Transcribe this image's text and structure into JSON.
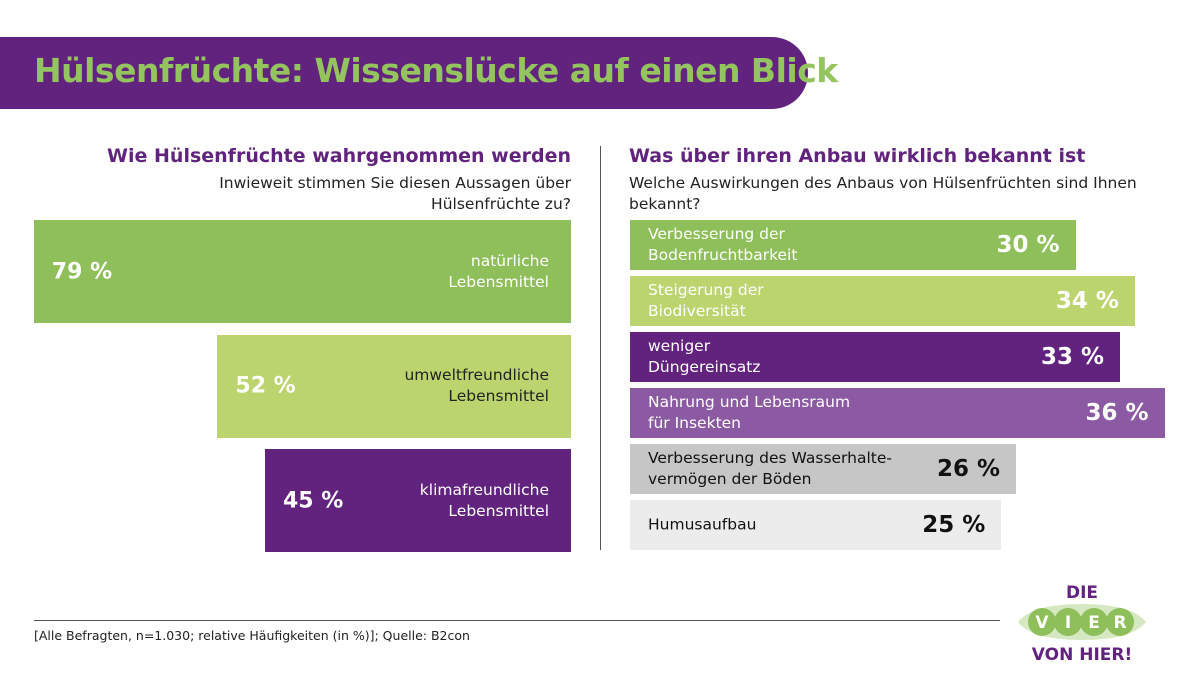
{
  "title": "Hülsenfrüchte: Wissenslücke auf einen Blick",
  "colors": {
    "purple": "#62237e",
    "green": "#8fbf5a",
    "light_green": "#bcd46e",
    "light_purple": "#8b5aa3",
    "gray": "#c6c6c6",
    "light_gray": "#ececec",
    "title_green": "#94c45e"
  },
  "chart_data": [
    {
      "type": "bar",
      "orientation": "horizontal",
      "title": "Wie Hülsenfrüchte wahrgenommen werden",
      "subtitle": "Inwieweit stimmen Sie diesen Aussagen über Hülsenfrüchte zu?",
      "categories": [
        "natürliche Lebensmittel",
        "umweltfreundliche Lebensmittel",
        "klimafreundliche Lebensmittel"
      ],
      "labels": [
        [
          "natürliche",
          "Lebensmittel"
        ],
        [
          "umweltfreundliche",
          "Lebensmittel"
        ],
        [
          "klimafreundliche",
          "Lebensmittel"
        ]
      ],
      "values": [
        79,
        52,
        45
      ],
      "value_labels": [
        "79 %",
        "52 %",
        "45 %"
      ],
      "bar_colors": [
        "#8fbf5a",
        "#bcd46e",
        "#62237e"
      ],
      "text_colors": [
        "#fff",
        "#222",
        "#fff"
      ],
      "unit": "%",
      "align": "right"
    },
    {
      "type": "bar",
      "orientation": "horizontal",
      "title": "Was über ihren Anbau wirklich bekannt ist",
      "subtitle": "Welche Auswirkungen des Anbaus von Hülsenfrüchten sind Ihnen bekannt?",
      "categories": [
        "Verbesserung der Bodenfruchtbarkeit",
        "Steigerung der Biodiversität",
        "weniger Düngereinsatz",
        "Nahrung und Lebensraum für Insekten",
        "Verbesserung des Wasserhaltevermögen der Böden",
        "Humusaufbau"
      ],
      "labels": [
        [
          "Verbesserung der",
          "Bodenfruchtbarkeit"
        ],
        [
          "Steigerung der",
          "Biodiversität"
        ],
        [
          "weniger",
          "Düngereinsatz"
        ],
        [
          "Nahrung und Lebensraum",
          "für Insekten"
        ],
        [
          "Verbesserung des Wasserhalte-",
          "vermögen der Böden"
        ],
        [
          "Humusaufbau"
        ]
      ],
      "values": [
        30,
        34,
        33,
        36,
        26,
        25
      ],
      "value_labels": [
        "30 %",
        "34 %",
        "33 %",
        "36 %",
        "26 %",
        "25 %"
      ],
      "bar_colors": [
        "#8fbf5a",
        "#bcd46e",
        "#62237e",
        "#8b5aa3",
        "#c6c6c6",
        "#ececec"
      ],
      "text_colors": [
        "#fff",
        "#fff",
        "#fff",
        "#fff",
        "#111",
        "#111"
      ],
      "unit": "%",
      "align": "left"
    }
  ],
  "source": "[Alle Befragten, n=1.030; relative Häufigkeiten (in %)]; Quelle: B2con",
  "logo": {
    "top": "DIE",
    "middle": "VIER",
    "bottom": "VON HIER!"
  }
}
